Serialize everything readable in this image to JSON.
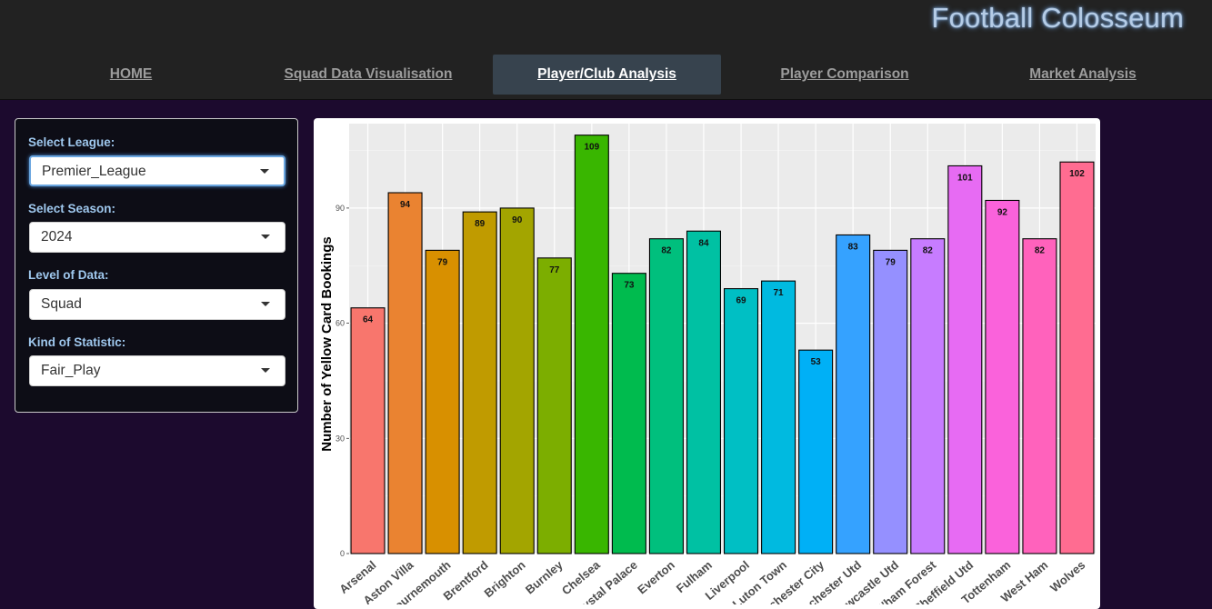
{
  "app": {
    "title": "Football Colosseum"
  },
  "nav": {
    "items": [
      {
        "label": "HOME",
        "active": false
      },
      {
        "label": "Squad Data Visualisation",
        "active": false
      },
      {
        "label": "Player/Club Analysis",
        "active": true
      },
      {
        "label": "Player Comparison",
        "active": false
      },
      {
        "label": "Market Analysis",
        "active": false
      }
    ]
  },
  "sidebar": {
    "league": {
      "label": "Select League:",
      "value": "Premier_League"
    },
    "season": {
      "label": "Select Season:",
      "value": "2024"
    },
    "level": {
      "label": "Level of Data:",
      "value": "Squad"
    },
    "statistic": {
      "label": "Kind of Statistic:",
      "value": "Fair_Play"
    }
  },
  "colors": {
    "accent": "#9fc8ee",
    "page_bg": "#1c0a2e",
    "nav_active_bg": "#37434e",
    "plot_bg": "#ebebeb"
  },
  "chart_data": {
    "type": "bar",
    "title": "",
    "xlabel": "",
    "ylabel": "Number of Yellow Card Bookings",
    "ylim": [
      0,
      112
    ],
    "yticks": [
      0,
      30,
      60,
      90
    ],
    "grid": true,
    "legend": "none",
    "categories": [
      "Arsenal",
      "Aston Villa",
      "Bournemouth",
      "Brentford",
      "Brighton",
      "Burnley",
      "Chelsea",
      "Crystal Palace",
      "Everton",
      "Fulham",
      "Liverpool",
      "Luton Town",
      "Manchester City",
      "Manchester Utd",
      "Newcastle Utd",
      "Nott'ham Forest",
      "Sheffield Utd",
      "Tottenham",
      "West Ham",
      "Wolves"
    ],
    "values": [
      64,
      94,
      79,
      89,
      90,
      77,
      109,
      73,
      82,
      84,
      69,
      71,
      53,
      83,
      79,
      82,
      101,
      92,
      82,
      102
    ],
    "colors": [
      "#F8766D",
      "#EA8331",
      "#D89000",
      "#C09B00",
      "#A3A500",
      "#7CAE00",
      "#39B600",
      "#00BB4E",
      "#00BF7D",
      "#00C1A3",
      "#00BFC4",
      "#00BAE0",
      "#00B0F6",
      "#35A2FF",
      "#9590FF",
      "#C77CFF",
      "#E76BF3",
      "#FA62DB",
      "#FF62BC",
      "#FF6C91"
    ]
  }
}
